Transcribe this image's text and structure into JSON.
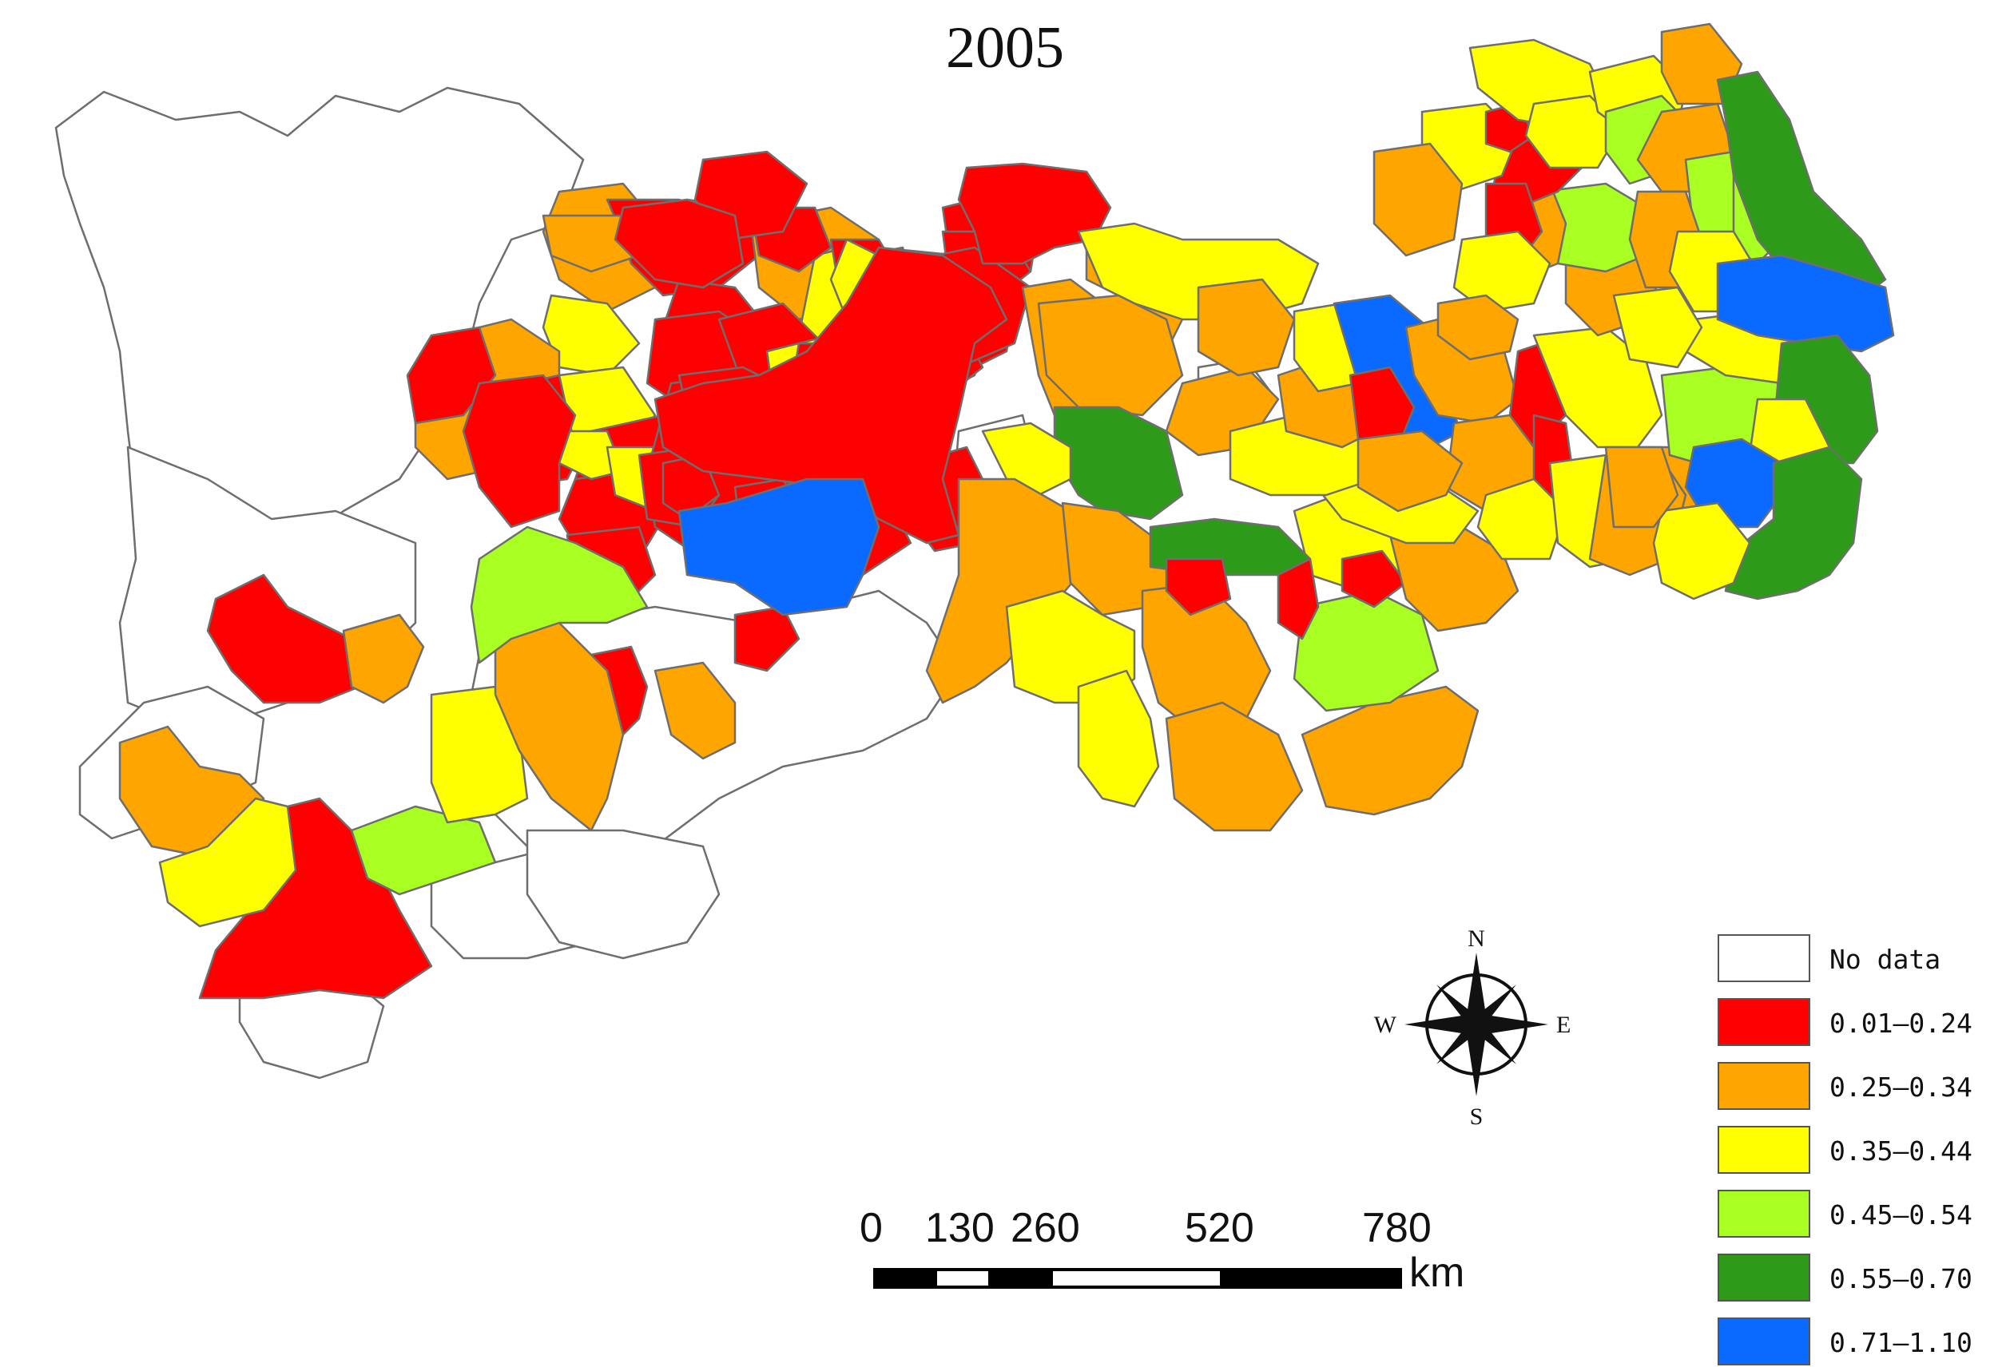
{
  "map": {
    "title": "2005",
    "north": "N",
    "south": "S",
    "west": "W",
    "east": "E"
  },
  "scale_bar": {
    "ticks": [
      "0",
      "130",
      "260",
      "520",
      "780"
    ],
    "unit": "km"
  },
  "legend": [
    {
      "label": "No data",
      "color": "#ffffff"
    },
    {
      "label": "0.01–0.24",
      "color": "#ff0000"
    },
    {
      "label": "0.25–0.34",
      "color": "#ffa500"
    },
    {
      "label": "0.35–0.44",
      "color": "#ffff00"
    },
    {
      "label": "0.45–0.54",
      "color": "#aaff22"
    },
    {
      "label": "0.55–0.70",
      "color": "#2e9a1a"
    },
    {
      "label": "0.71–1.10",
      "color": "#0a6aff"
    }
  ]
}
